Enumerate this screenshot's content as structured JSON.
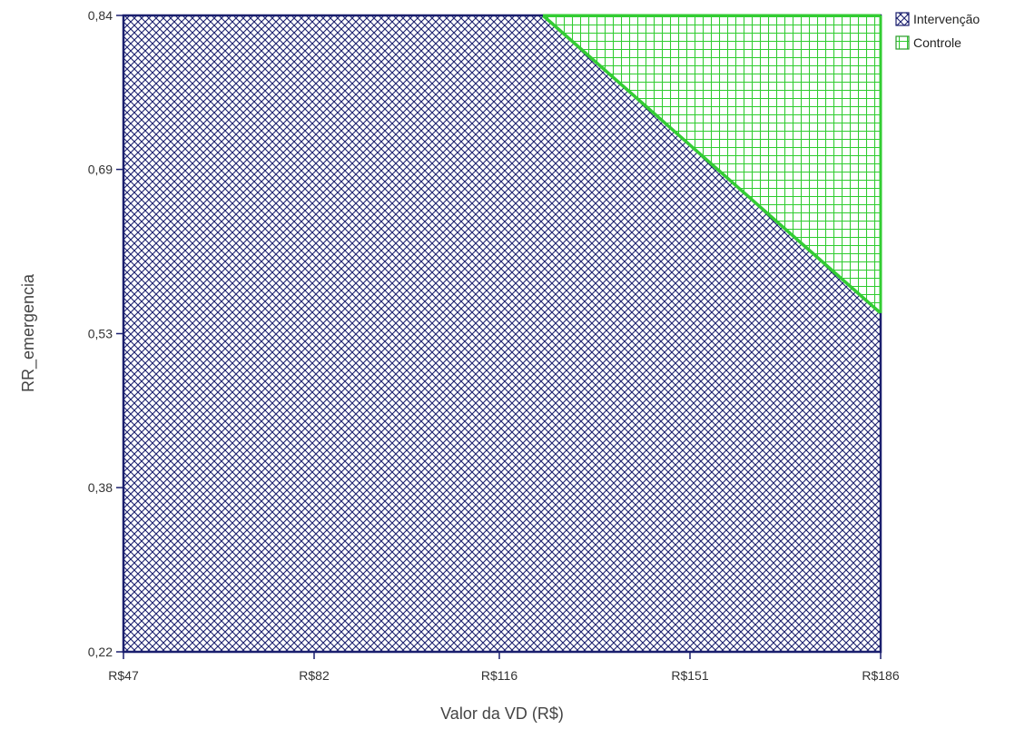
{
  "chart_data": {
    "type": "area",
    "title": "",
    "xlabel": "Valor da VD (R$)",
    "ylabel": "RR_emergencia",
    "x_tick_labels": [
      "R$47",
      "R$82",
      "R$116",
      "R$151",
      "R$186"
    ],
    "x_ticks": [
      47,
      82,
      116,
      151,
      186
    ],
    "y_tick_labels": [
      "0,84",
      "0,69",
      "0,53",
      "0,38",
      "0,22"
    ],
    "y_ticks": [
      0.84,
      0.69,
      0.53,
      0.38,
      0.22
    ],
    "xlim": [
      47,
      186
    ],
    "ylim": [
      0.22,
      0.84
    ],
    "grid": false,
    "legend_position": "top-right",
    "boundary": {
      "x": [
        124,
        186
      ],
      "y": [
        0.84,
        0.55
      ]
    },
    "series": [
      {
        "name": "Intervenção",
        "color": "#1a1f6e",
        "pattern": "crosshatch-diagonal",
        "region": "below-boundary"
      },
      {
        "name": "Controle",
        "color": "#33cc33",
        "pattern": "grid",
        "region": "above-boundary"
      }
    ]
  }
}
